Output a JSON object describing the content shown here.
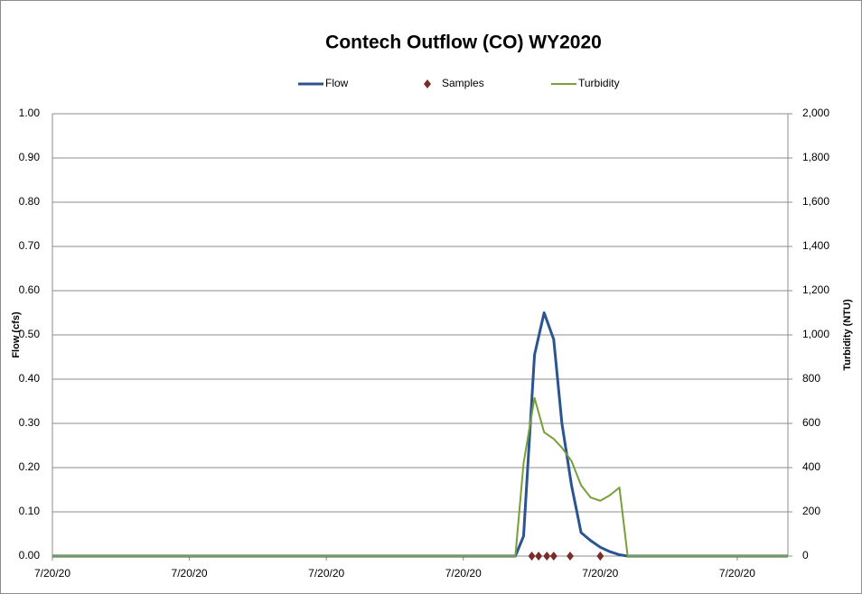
{
  "chart_data": {
    "type": "line",
    "title": "Contech Outflow (CO) WY2020",
    "ylabel": "Flow (cfs)",
    "y2label": "Turbidity (NTU)",
    "xlim": [
      0,
      5.37
    ],
    "xticks": [
      {
        "value": 0,
        "label": "7/20/20"
      },
      {
        "value": 1,
        "label": "7/20/20"
      },
      {
        "value": 2,
        "label": "7/20/20"
      },
      {
        "value": 3,
        "label": "7/20/20"
      },
      {
        "value": 4,
        "label": "7/20/20"
      },
      {
        "value": 5,
        "label": "7/20/20"
      }
    ],
    "ylim": [
      0,
      1
    ],
    "yticks": [
      {
        "value": 0,
        "label": "0.00"
      },
      {
        "value": 0.1,
        "label": "0.10"
      },
      {
        "value": 0.2,
        "label": "0.20"
      },
      {
        "value": 0.3,
        "label": "0.30"
      },
      {
        "value": 0.4,
        "label": "0.40"
      },
      {
        "value": 0.5,
        "label": "0.50"
      },
      {
        "value": 0.6,
        "label": "0.60"
      },
      {
        "value": 0.7,
        "label": "0.70"
      },
      {
        "value": 0.8,
        "label": "0.80"
      },
      {
        "value": 0.9,
        "label": "0.90"
      },
      {
        "value": 1,
        "label": "1.00"
      }
    ],
    "y2lim": [
      0,
      2000
    ],
    "y2ticks": [
      0,
      200,
      400,
      600,
      800,
      {
        "value": 1000,
        "label": "1,000"
      },
      {
        "value": 1200,
        "label": "1,200"
      },
      {
        "value": 1400,
        "label": "1,400"
      },
      {
        "value": 1600,
        "label": "1,600"
      },
      {
        "value": 1800,
        "label": "1,800"
      },
      {
        "value": 2000,
        "label": "2,000"
      }
    ],
    "grid": true,
    "legend": "top",
    "series": [
      {
        "name": "Flow",
        "color": "#2b5592",
        "mark": "line",
        "x": [
          0,
          3.38,
          3.44,
          3.52,
          3.59,
          3.66,
          3.72,
          3.79,
          3.86,
          3.93,
          4.0,
          4.07,
          4.14,
          4.2,
          5.37
        ],
        "values": [
          0,
          0,
          0.045,
          0.455,
          0.55,
          0.49,
          0.3,
          0.16,
          0.053,
          0.035,
          0.02,
          0.01,
          0.003,
          0,
          0
        ]
      },
      {
        "name": "Samples",
        "color": "#7b2c26",
        "mark": "diamond",
        "x": [
          3.5,
          3.55,
          3.61,
          3.66,
          3.78,
          4.0
        ],
        "values": [
          0,
          0,
          0,
          0,
          0,
          0
        ]
      },
      {
        "name": "Turbidity",
        "color": "#77a03a",
        "mark": "line",
        "axis": "y2",
        "x": [
          0,
          3.38,
          3.44,
          3.52,
          3.59,
          3.66,
          3.72,
          3.79,
          3.86,
          3.93,
          4.0,
          4.07,
          4.14,
          4.2,
          5.37
        ],
        "values": [
          0,
          0,
          420,
          715,
          560,
          530,
          490,
          430,
          320,
          265,
          250,
          275,
          310,
          0,
          0
        ]
      }
    ]
  }
}
